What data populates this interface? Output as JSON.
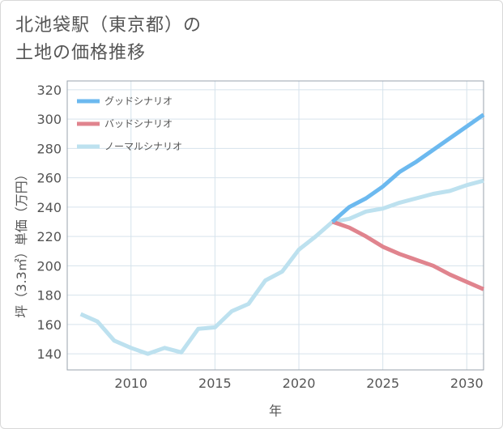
{
  "title_line1": "北池袋駅（東京都）の",
  "title_line2": "土地の価格推移",
  "chart_data": {
    "type": "line",
    "xlabel": "年",
    "ylabel": "坪（3.3㎡）単価（万円）",
    "xlim": [
      2006.2,
      2031
    ],
    "ylim": [
      129,
      326
    ],
    "xticks": [
      2010,
      2015,
      2020,
      2025,
      2030
    ],
    "yticks": [
      140,
      160,
      180,
      200,
      220,
      240,
      260,
      280,
      300,
      320
    ],
    "grid": true,
    "legend_position": "top-left",
    "series": [
      {
        "name": "グッドシナリオ",
        "color": "#6cb9ef",
        "x": [
          2022,
          2023,
          2024,
          2025,
          2026,
          2027,
          2028,
          2029,
          2030,
          2031
        ],
        "values": [
          230,
          240,
          246,
          254,
          264,
          271,
          279,
          287,
          295,
          303
        ]
      },
      {
        "name": "バッドシナリオ",
        "color": "#e0848e",
        "x": [
          2022,
          2023,
          2024,
          2025,
          2026,
          2027,
          2028,
          2029,
          2030,
          2031
        ],
        "values": [
          230,
          226,
          220,
          213,
          208,
          204,
          200,
          194,
          189,
          184
        ]
      },
      {
        "name": "ノーマルシナリオ",
        "color": "#bde1ef",
        "x": [
          2007,
          2008,
          2009,
          2010,
          2011,
          2012,
          2013,
          2014,
          2015,
          2016,
          2017,
          2018,
          2019,
          2020,
          2021,
          2022,
          2023,
          2024,
          2025,
          2026,
          2027,
          2028,
          2029,
          2030,
          2031
        ],
        "values": [
          167,
          162,
          149,
          144,
          140,
          144,
          141,
          157,
          158,
          169,
          174,
          190,
          196,
          211,
          220,
          230,
          232,
          237,
          239,
          243,
          246,
          249,
          251,
          255,
          258
        ]
      }
    ]
  }
}
